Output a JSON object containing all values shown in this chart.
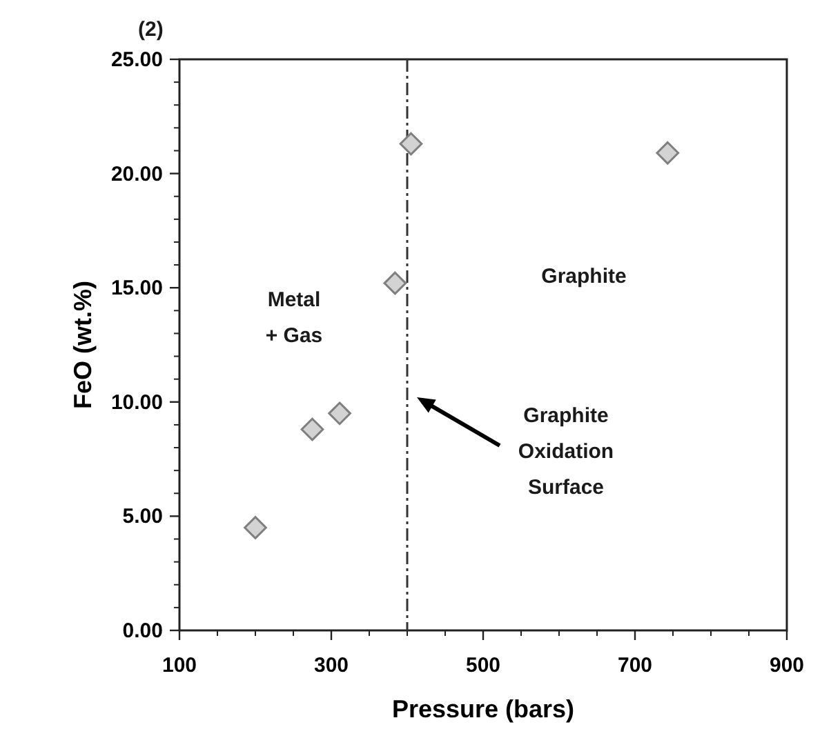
{
  "chart_data": {
    "type": "scatter",
    "xlabel": "Pressure (bars)",
    "ylabel": "FeO (wt.%)",
    "x": [
      200,
      275,
      311,
      384,
      405,
      743
    ],
    "series": [
      {
        "color": "#d3d3d3",
        "values": [
          4.5,
          8.8,
          9.5,
          15.2,
          21.3,
          20.9
        ]
      }
    ],
    "marker": "diamond",
    "xlim": [
      100,
      900
    ],
    "xticks": [
      100,
      300,
      500,
      700,
      900
    ],
    "ylim": [
      0,
      25
    ],
    "yticks": [
      {
        "value": 0,
        "label": "0.00"
      },
      {
        "value": 5,
        "label": "5.00"
      },
      {
        "value": 10,
        "label": "10.00"
      },
      {
        "value": 15,
        "label": "15.00"
      },
      {
        "value": 20,
        "label": "20.00"
      },
      {
        "value": 25,
        "label": "25.00"
      }
    ],
    "ref_lines": [
      {
        "axis": "x",
        "value": 400,
        "color": "#333333",
        "line_style": "dashed"
      }
    ],
    "annotations": [
      "(2)",
      "Metal\n+ Gas",
      "Graphite",
      "Graphite\nOxidation\nSurface"
    ]
  }
}
